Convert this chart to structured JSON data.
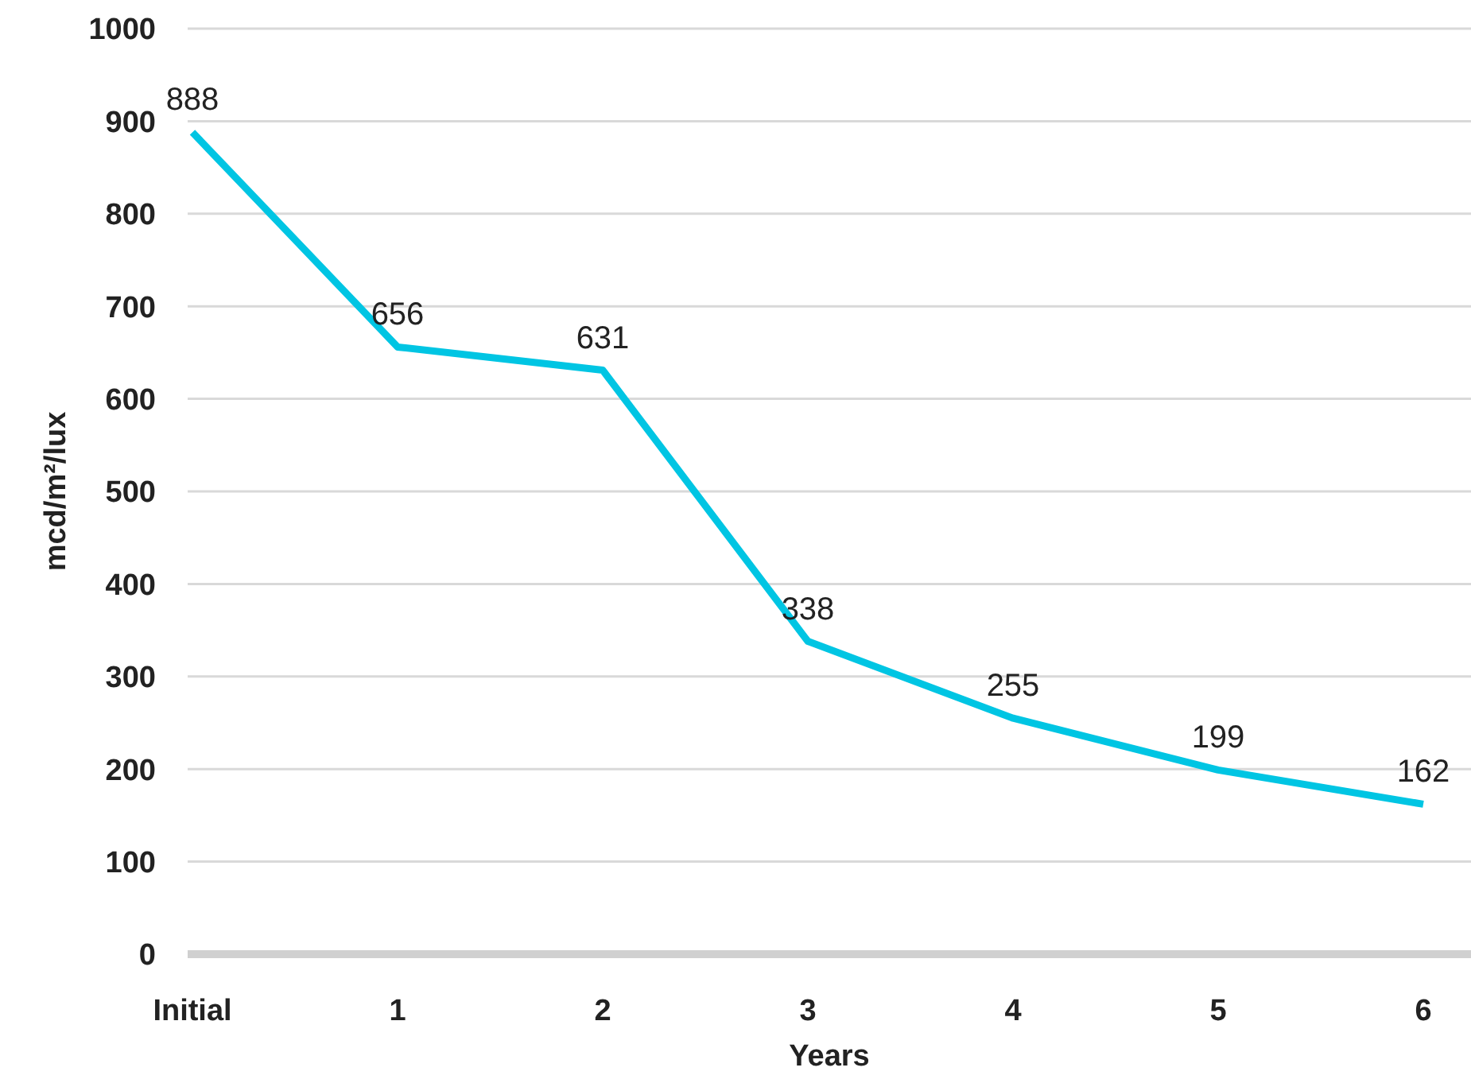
{
  "chart_data": {
    "type": "line",
    "xlabel": "Years",
    "ylabel": "mcd/m²/lux",
    "categories": [
      "Initial",
      "1",
      "2",
      "3",
      "4",
      "5",
      "6"
    ],
    "series": [
      {
        "color": "#00c5e3",
        "values": [
          888,
          656,
          631,
          338,
          255,
          199,
          162
        ]
      }
    ],
    "ylim": [
      0,
      1000
    ],
    "yticks": [
      0,
      100,
      200,
      300,
      400,
      500,
      600,
      700,
      800,
      900,
      1000
    ],
    "grid": "y",
    "data_labels": true,
    "marker": "none",
    "line_style": "solid",
    "legend": false
  }
}
